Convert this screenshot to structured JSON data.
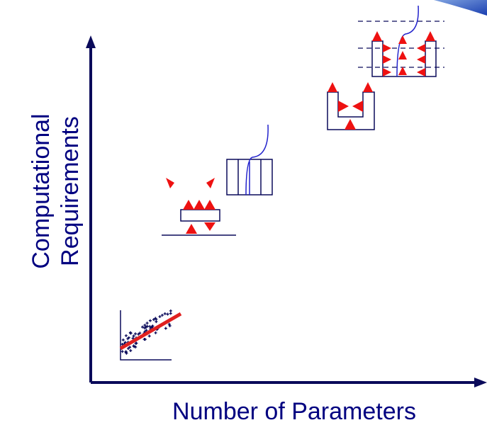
{
  "axes": {
    "y_label_lines": [
      "Computational",
      "Requirements"
    ],
    "x_label": "Number of Parameters"
  }
}
